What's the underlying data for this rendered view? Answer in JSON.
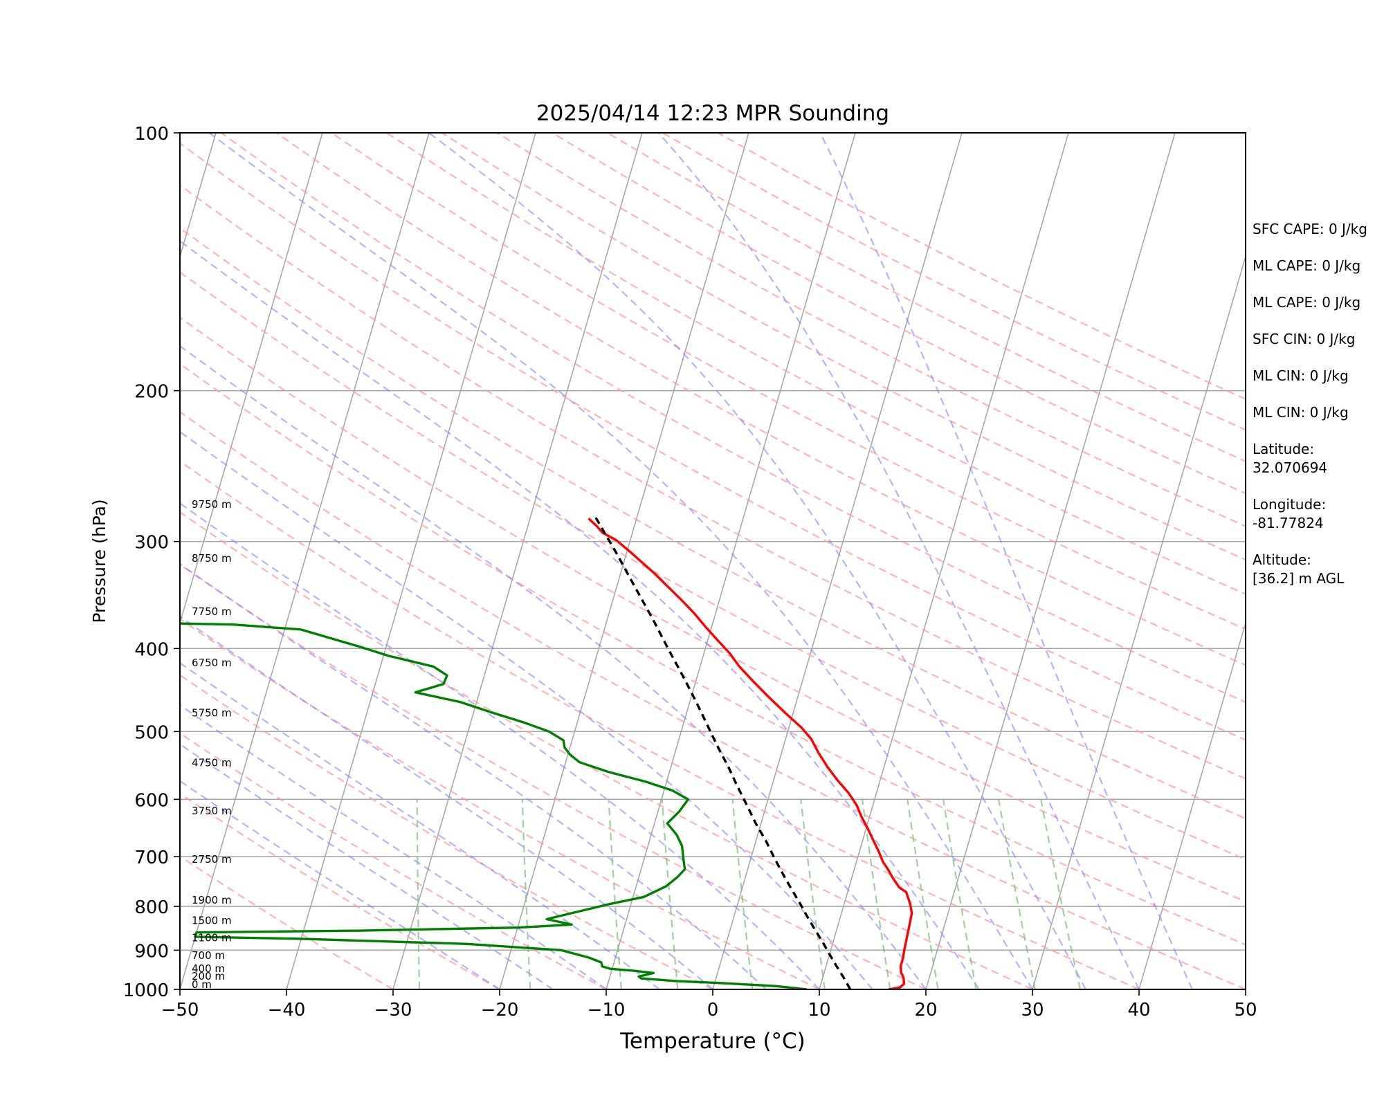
{
  "chart_data": {
    "type": "line",
    "title": "2025/04/14 12:23 MPR Sounding",
    "xlabel": "Temperature (°C)",
    "ylabel": "Pressure (hPa)",
    "xlim": [
      -50,
      50
    ],
    "ylim": [
      1000,
      100
    ],
    "y_scale": "log",
    "skew": true,
    "x_ticks": [
      "−50",
      "−40",
      "−30",
      "−20",
      "−10",
      "0",
      "10",
      "20",
      "30",
      "40",
      "50"
    ],
    "y_ticks": [
      {
        "p": 100,
        "label": "100"
      },
      {
        "p": 200,
        "label": "200"
      },
      {
        "p": 300,
        "label": "300"
      },
      {
        "p": 400,
        "label": "400"
      },
      {
        "p": 500,
        "label": "500"
      },
      {
        "p": 600,
        "label": "600"
      },
      {
        "p": 700,
        "label": "700"
      },
      {
        "p": 800,
        "label": "800"
      },
      {
        "p": 900,
        "label": "900"
      },
      {
        "p": 1000,
        "label": "1000"
      }
    ],
    "height_labels": [
      {
        "p": 275,
        "label": "9750 m"
      },
      {
        "p": 318,
        "label": "8750 m"
      },
      {
        "p": 367,
        "label": "7750 m"
      },
      {
        "p": 421,
        "label": "6750 m"
      },
      {
        "p": 482,
        "label": "5750 m"
      },
      {
        "p": 551,
        "label": "4750 m"
      },
      {
        "p": 627,
        "label": "3750 m"
      },
      {
        "p": 714,
        "label": "2750 m"
      },
      {
        "p": 797,
        "label": "1900 m"
      },
      {
        "p": 842,
        "label": "1500 m"
      },
      {
        "p": 882,
        "label": "1100 m"
      },
      {
        "p": 925,
        "label": "700 m"
      },
      {
        "p": 958,
        "label": "400 m"
      },
      {
        "p": 978,
        "label": "200 m"
      },
      {
        "p": 1000,
        "label": "0 m"
      }
    ],
    "series": [
      {
        "color": "#ff0000",
        "points": [
          [
            16.5,
            1000
          ],
          [
            17.5,
            995
          ],
          [
            17.8,
            985
          ],
          [
            17.6,
            970
          ],
          [
            17.2,
            955
          ],
          [
            17.0,
            940
          ],
          [
            17.0,
            920
          ],
          [
            16.9,
            900
          ],
          [
            16.8,
            870
          ],
          [
            16.7,
            840
          ],
          [
            16.6,
            815
          ],
          [
            16.2,
            795
          ],
          [
            15.5,
            770
          ],
          [
            14.7,
            760
          ],
          [
            13.8,
            740
          ],
          [
            13.2,
            725
          ],
          [
            12.5,
            710
          ],
          [
            11.8,
            690
          ],
          [
            11.0,
            670
          ],
          [
            10.2,
            650
          ],
          [
            9.3,
            630
          ],
          [
            8.5,
            610
          ],
          [
            7.4,
            590
          ],
          [
            6.0,
            570
          ],
          [
            4.7,
            550
          ],
          [
            3.5,
            530
          ],
          [
            2.4,
            510
          ],
          [
            1.2,
            495
          ],
          [
            -0.8,
            475
          ],
          [
            -2.8,
            455
          ],
          [
            -4.6,
            437
          ],
          [
            -6.3,
            420
          ],
          [
            -7.6,
            405
          ],
          [
            -9.2,
            390
          ],
          [
            -10.5,
            378
          ],
          [
            -12.1,
            363
          ],
          [
            -13.7,
            350
          ],
          [
            -15.3,
            338
          ],
          [
            -16.8,
            327
          ],
          [
            -18.5,
            316
          ],
          [
            -19.6,
            309
          ],
          [
            -21.3,
            299
          ],
          [
            -22.8,
            293
          ],
          [
            -23.5,
            288
          ],
          [
            -24.0,
            285
          ],
          [
            -24.5,
            282
          ]
        ]
      },
      {
        "color": "#008000",
        "points": [
          [
            8.8,
            1000
          ],
          [
            5.8,
            991
          ],
          [
            0.5,
            983
          ],
          [
            -3.6,
            978
          ],
          [
            -5.0,
            975
          ],
          [
            -7.0,
            971
          ],
          [
            -7.3,
            966
          ],
          [
            -6.0,
            957
          ],
          [
            -8.0,
            951
          ],
          [
            -10.2,
            946
          ],
          [
            -11.0,
            940
          ],
          [
            -11.2,
            930
          ],
          [
            -12.5,
            918
          ],
          [
            -15.3,
            900
          ],
          [
            -24.3,
            885
          ],
          [
            -40.0,
            873
          ],
          [
            -50,
            868
          ],
          [
            -50,
            858
          ],
          [
            -35.0,
            854
          ],
          [
            -20.0,
            847
          ],
          [
            -15.0,
            840
          ],
          [
            -17.5,
            828
          ],
          [
            -12.0,
            795
          ],
          [
            -9.0,
            780
          ],
          [
            -7.2,
            758
          ],
          [
            -6.4,
            740
          ],
          [
            -5.9,
            724
          ],
          [
            -6.4,
            700
          ],
          [
            -6.8,
            680
          ],
          [
            -7.6,
            660
          ],
          [
            -8.8,
            640
          ],
          [
            -8.0,
            620
          ],
          [
            -7.5,
            600
          ],
          [
            -9.2,
            586
          ],
          [
            -12.0,
            572
          ],
          [
            -15.8,
            557
          ],
          [
            -18.7,
            543
          ],
          [
            -19.8,
            532
          ],
          [
            -20.5,
            522
          ],
          [
            -20.8,
            512
          ],
          [
            -22.4,
            500
          ],
          [
            -25.0,
            488
          ],
          [
            -28.3,
            475
          ],
          [
            -31.5,
            462
          ],
          [
            -36.0,
            450
          ],
          [
            -33.6,
            440
          ],
          [
            -33.5,
            430
          ],
          [
            -35.0,
            420
          ],
          [
            -39.5,
            408
          ],
          [
            -42.5,
            398
          ],
          [
            -48.5,
            380
          ],
          [
            -55.0,
            375
          ],
          [
            -65.0,
            373
          ],
          [
            -70,
            372
          ],
          [
            -70,
            295
          ],
          [
            -64.0,
            294
          ],
          [
            -68.0,
            296
          ]
        ]
      },
      {
        "color": "#000000",
        "dashed": true,
        "points": [
          [
            12.9,
            1000
          ],
          [
            12.0,
            970
          ],
          [
            11.0,
            940
          ],
          [
            10.0,
            910
          ],
          [
            9.0,
            880
          ],
          [
            7.9,
            850
          ],
          [
            6.8,
            820
          ],
          [
            5.7,
            790
          ],
          [
            4.5,
            760
          ],
          [
            3.3,
            730
          ],
          [
            2.1,
            700
          ],
          [
            0.9,
            670
          ],
          [
            -0.5,
            640
          ],
          [
            -1.8,
            610
          ],
          [
            -3.2,
            580
          ],
          [
            -4.6,
            550
          ],
          [
            -6.2,
            520
          ],
          [
            -7.8,
            490
          ],
          [
            -9.5,
            460
          ],
          [
            -11.4,
            430
          ],
          [
            -13.5,
            400
          ],
          [
            -15.7,
            370
          ],
          [
            -18.2,
            340
          ],
          [
            -20.9,
            310
          ],
          [
            -24.0,
            280
          ]
        ]
      }
    ]
  },
  "info_lines": {
    "sfc_cape": "SFC CAPE: 0 J/kg",
    "ml_cape_1": "ML CAPE: 0 J/kg",
    "ml_cape_2": "ML CAPE: 0 J/kg",
    "sfc_cin": "SFC CIN: 0 J/kg",
    "ml_cin_1": "ML CIN: 0 J/kg",
    "ml_cin_2": "ML CIN: 0 J/kg",
    "latitude_label": "Latitude:",
    "latitude_value": "32.070694",
    "longitude_label": "Longitude:",
    "longitude_value": "-81.77824",
    "altitude_label": "Altitude:",
    "altitude_value": "[36.2] m AGL"
  },
  "colors": {
    "temperature": "#ff0000",
    "dewpoint": "#008000",
    "parcel": "#000000",
    "dry_adiabats": "#ff9999",
    "moist_adiabats": "#8080ff",
    "mixing_ratio": "#80c080",
    "isotherms": "#a8a8a8"
  }
}
